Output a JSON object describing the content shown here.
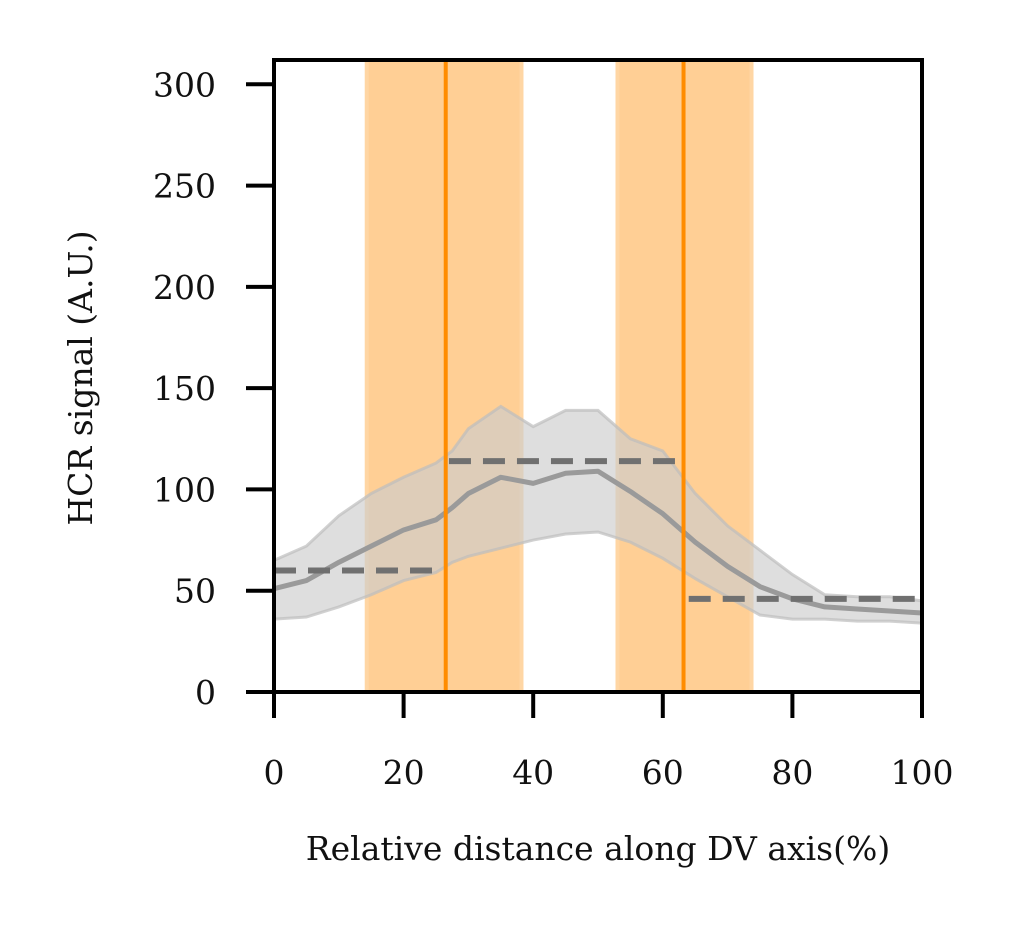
{
  "chart_data": {
    "type": "line",
    "title": "",
    "xlabel": "Relative distance along DV axis(%)",
    "ylabel": "HCR signal (A.U.)",
    "xlim": [
      0,
      100
    ],
    "ylim": [
      0,
      312
    ],
    "xticks": [
      0,
      20,
      40,
      60,
      80,
      100
    ],
    "yticks": [
      0,
      50,
      100,
      150,
      200,
      250,
      300
    ],
    "xtick_labels": [
      "0",
      "20",
      "40",
      "60",
      "80",
      "100"
    ],
    "ytick_labels": [
      "0",
      "50",
      "100",
      "150",
      "200",
      "250",
      "300"
    ],
    "grid": false,
    "legend": "none",
    "colors": {
      "mean_line": "#9a9a9a",
      "band": "#cccccc",
      "boundary": "#ff8c00",
      "boundary_band": "#ffb55a",
      "step": "#707070"
    },
    "mean_series": {
      "x": [
        0,
        5,
        10,
        15,
        20,
        25,
        27.5,
        30,
        35,
        40,
        45,
        50,
        55,
        60,
        65,
        70,
        75,
        80,
        85,
        90,
        95,
        100
      ],
      "y": [
        51,
        55,
        64,
        72,
        80,
        85,
        91,
        98,
        106,
        103,
        108,
        109,
        99,
        88,
        74,
        62,
        52,
        46,
        42,
        41,
        40,
        39
      ]
    },
    "band_series": {
      "x": [
        0,
        5,
        10,
        15,
        20,
        25,
        27.5,
        30,
        35,
        40,
        45,
        50,
        55,
        60,
        65,
        70,
        75,
        80,
        85,
        90,
        95,
        100
      ],
      "lower": [
        36,
        37,
        42,
        48,
        55,
        59,
        64,
        67,
        71,
        75,
        78,
        79,
        74,
        66,
        56,
        47,
        38,
        36,
        36,
        35,
        35,
        34
      ],
      "upper": [
        65,
        72,
        87,
        98,
        106,
        113,
        119,
        130,
        141,
        131,
        139,
        139,
        125,
        119,
        98,
        82,
        70,
        58,
        48,
        47,
        47,
        45
      ]
    },
    "step_segments": [
      {
        "x": [
          0,
          26
        ],
        "y": 60
      },
      {
        "x": [
          27,
          63
        ],
        "y": 114
      },
      {
        "x": 64,
        "x_end": 100,
        "y": 46
      }
    ],
    "boundaries": [
      {
        "x": 26.5,
        "lower": 14,
        "upper": 38.5
      },
      {
        "x": 63.2,
        "lower": 52.7,
        "upper": 74
      }
    ]
  }
}
